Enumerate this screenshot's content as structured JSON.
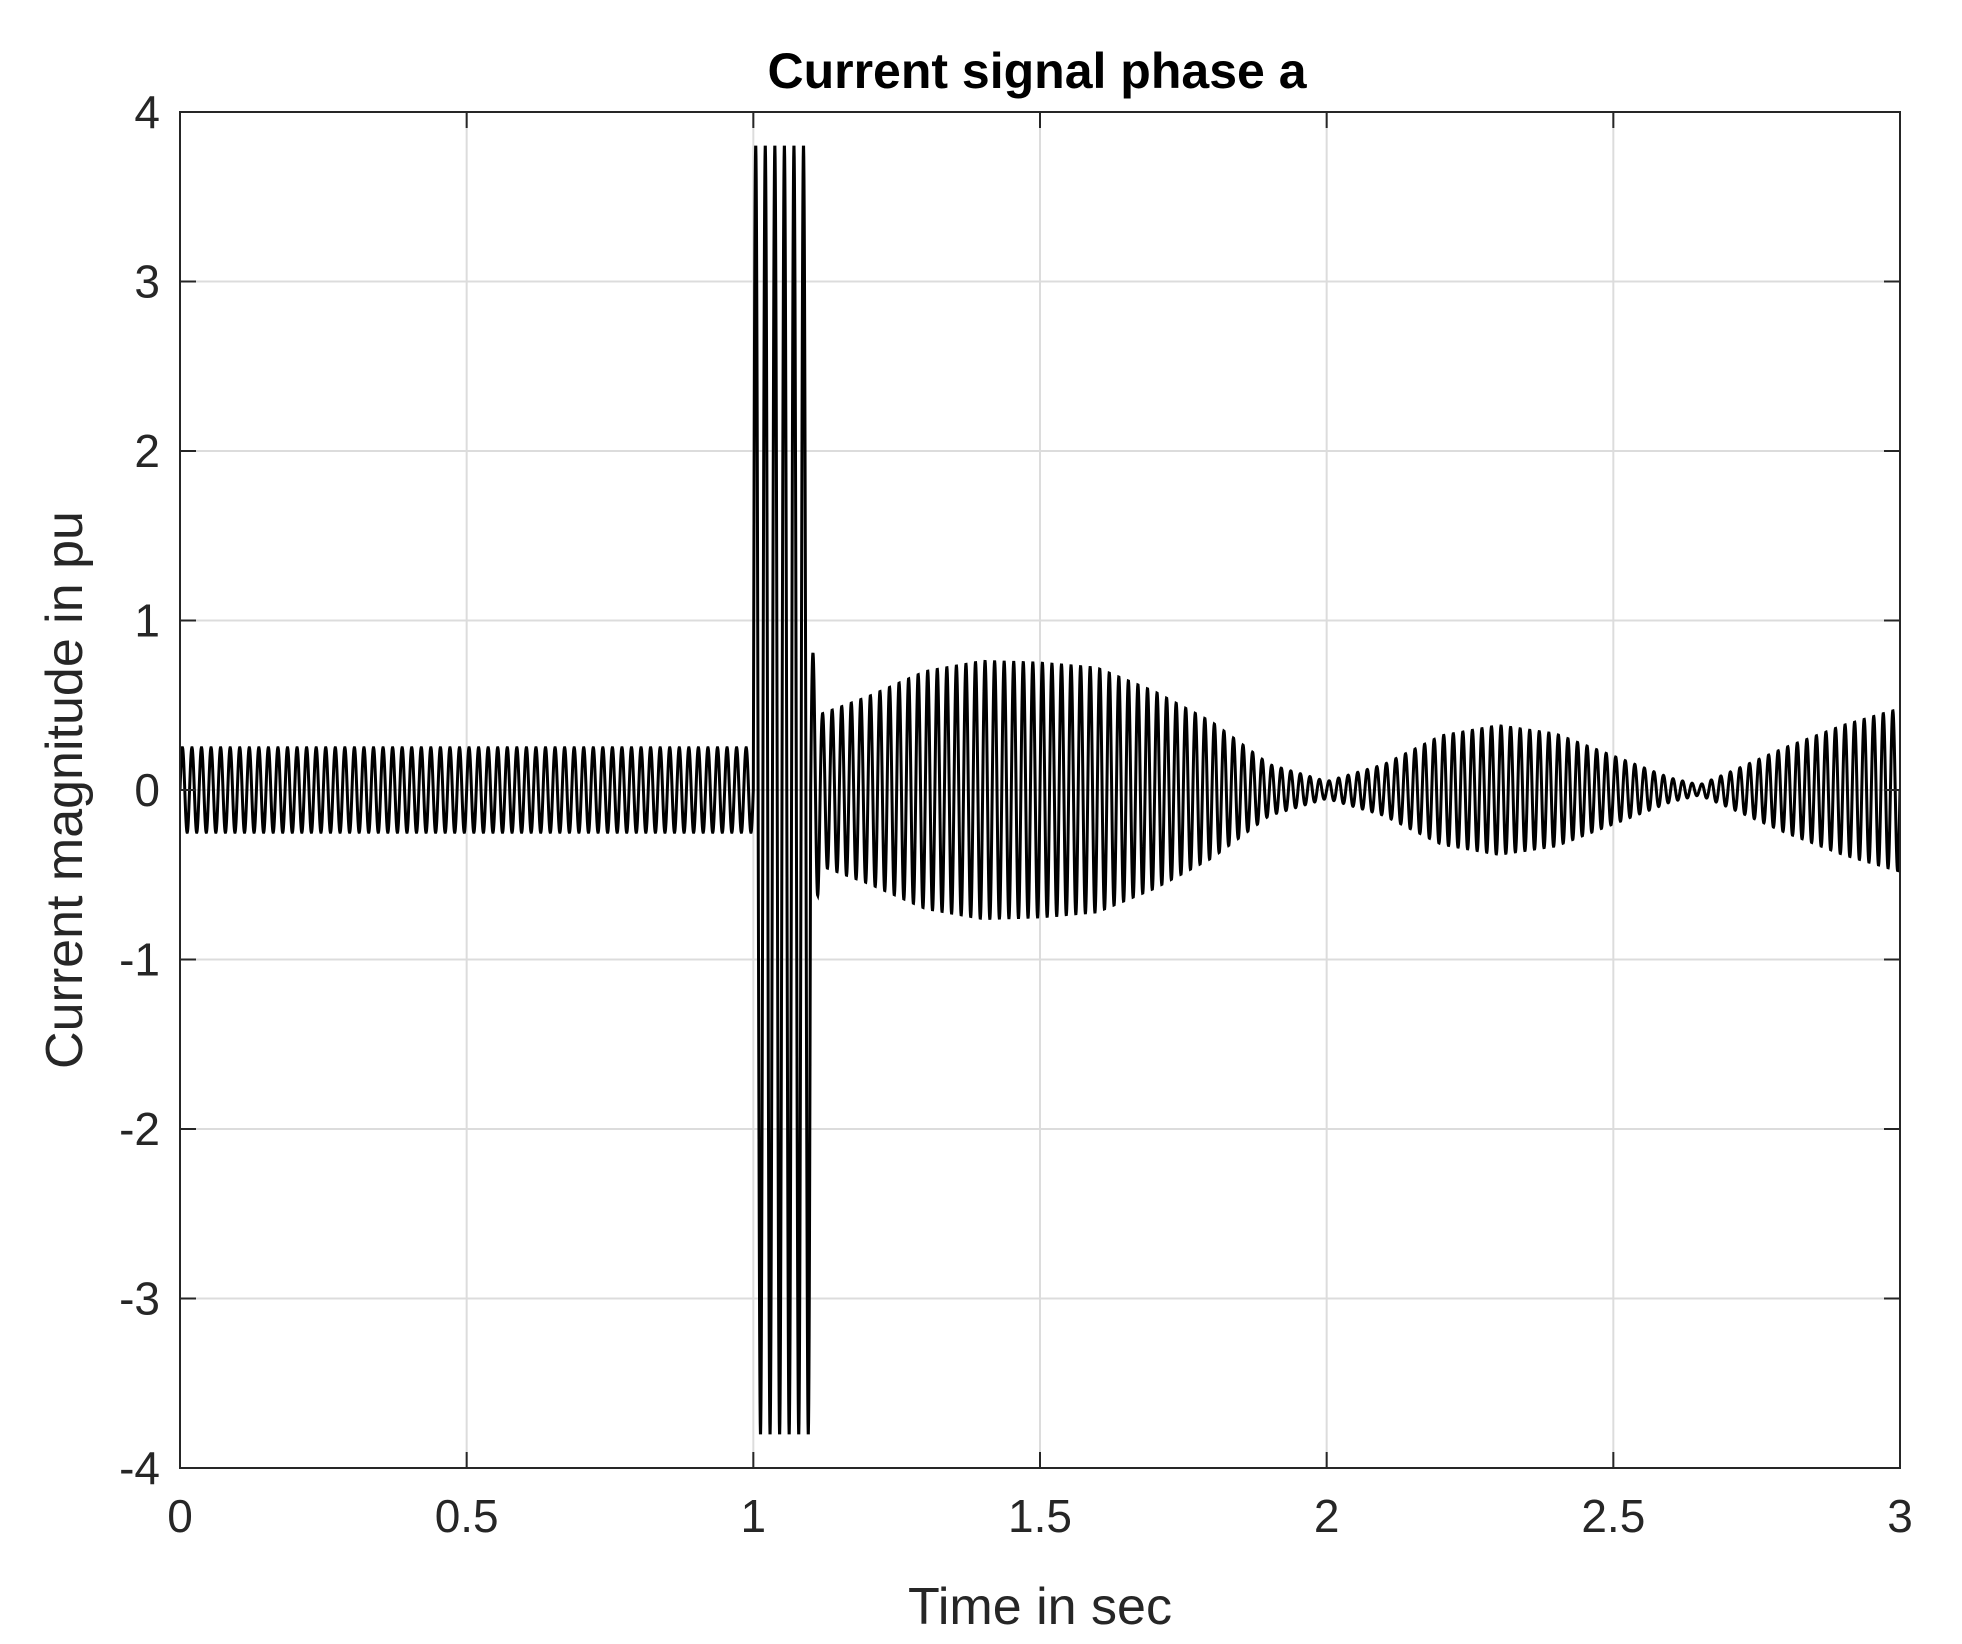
{
  "chart_data": {
    "type": "line",
    "title": "Current signal phase a",
    "xlabel": "Time in sec",
    "ylabel": "Current magnitude in pu",
    "xlim": [
      0,
      3
    ],
    "ylim": [
      -4,
      4
    ],
    "xticks": [
      0,
      0.5,
      1,
      1.5,
      2,
      2.5,
      3
    ],
    "xtick_labels": [
      "0",
      "0.5",
      "1",
      "1.5",
      "2",
      "2.5",
      "3"
    ],
    "yticks": [
      -4,
      -3,
      -2,
      -1,
      0,
      1,
      2,
      3,
      4
    ],
    "ytick_labels": [
      "-4",
      "-3",
      "-2",
      "-1",
      "0",
      "1",
      "2",
      "3",
      "4"
    ],
    "grid": true,
    "line_color": "#000000",
    "series": [
      {
        "frequency_hz": 60,
        "segments": [
          {
            "t_start": 0,
            "t_end": 1.0,
            "amplitude": 0.25
          },
          {
            "t_start": 1.0,
            "t_end": 1.1,
            "amplitude": 3.8
          },
          {
            "t_start": 1.1,
            "t_end": 3.0,
            "envelope": [
              [
                1.1,
                0.9
              ],
              [
                1.12,
                0.45
              ],
              [
                1.2,
                0.55
              ],
              [
                1.3,
                0.7
              ],
              [
                1.4,
                0.76
              ],
              [
                1.5,
                0.75
              ],
              [
                1.6,
                0.72
              ],
              [
                1.7,
                0.58
              ],
              [
                1.8,
                0.4
              ],
              [
                1.9,
                0.15
              ],
              [
                2.0,
                0.05
              ],
              [
                2.1,
                0.15
              ],
              [
                2.2,
                0.32
              ],
              [
                2.3,
                0.38
              ],
              [
                2.4,
                0.33
              ],
              [
                2.5,
                0.2
              ],
              [
                2.6,
                0.07
              ],
              [
                2.65,
                0.03
              ],
              [
                2.7,
                0.1
              ],
              [
                2.8,
                0.25
              ],
              [
                2.9,
                0.38
              ],
              [
                3.0,
                0.48
              ]
            ]
          }
        ]
      }
    ]
  }
}
